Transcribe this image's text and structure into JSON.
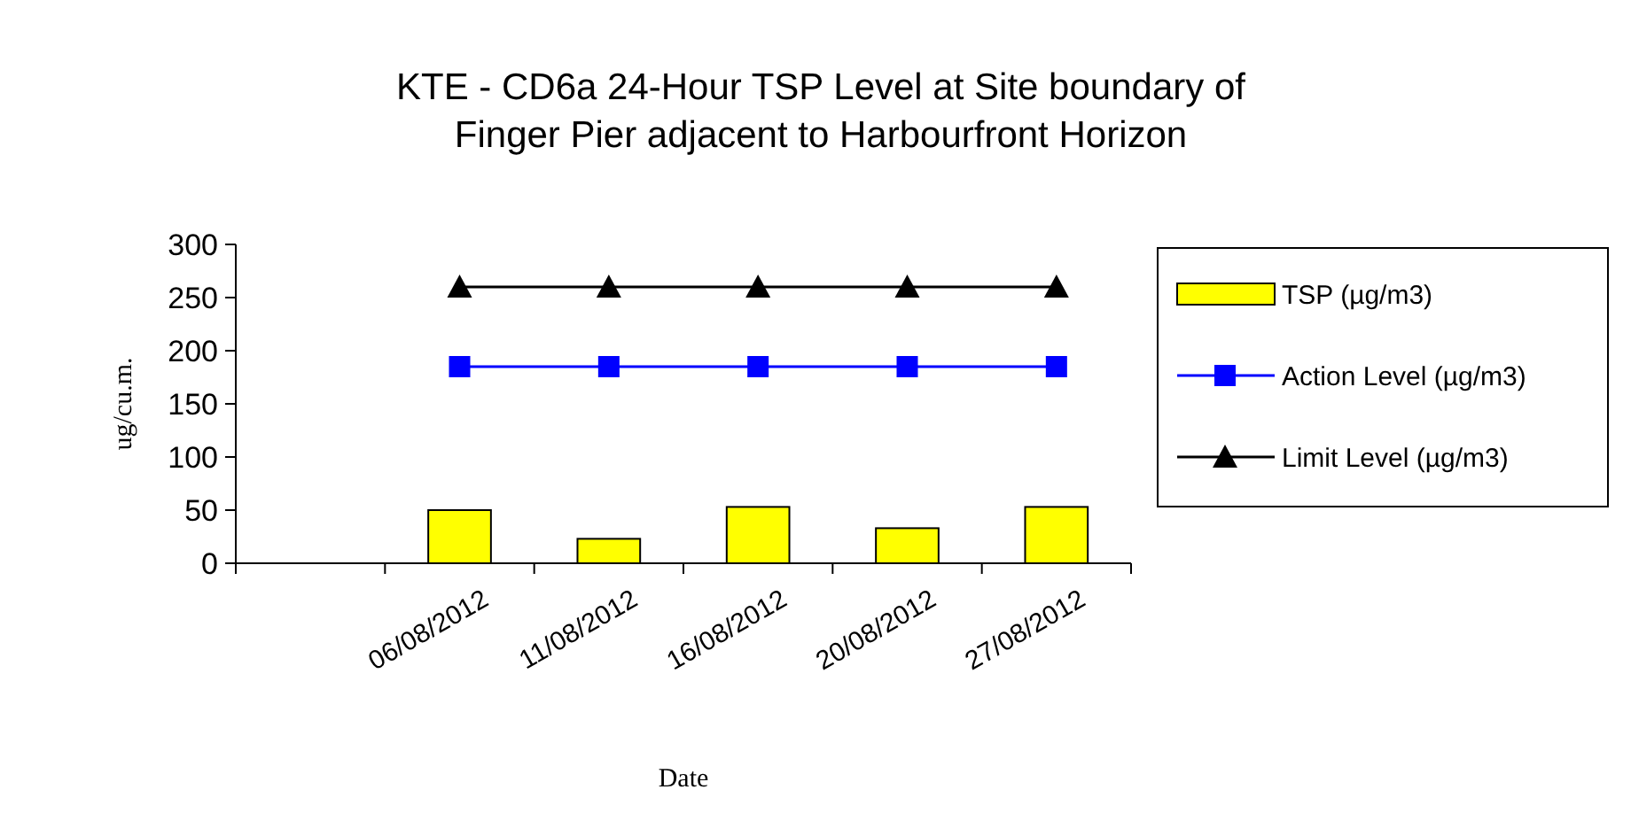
{
  "chart_data": {
    "type": "bar",
    "title": "KTE - CD6a 24-Hour TSP Level at Site boundary of\nFinger Pier adjacent to Harbourfront Horizon",
    "xlabel": "Date",
    "ylabel": "ug/cu.m.",
    "categories": [
      null,
      "06/08/2012",
      "11/08/2012",
      "16/08/2012",
      "20/08/2012",
      "27/08/2012"
    ],
    "series": [
      {
        "name": "TSP (µg/m3)",
        "color": "#ffff00",
        "values": [
          null,
          50,
          23,
          53,
          33,
          53
        ]
      },
      {
        "name": "Action Level (µg/m3)",
        "type": "line",
        "color": "#0000ff",
        "marker": "square",
        "values": [
          null,
          185,
          185,
          185,
          185,
          185
        ]
      },
      {
        "name": "Limit Level (µg/m3)",
        "type": "line",
        "color": "#000000",
        "marker": "triangle",
        "values": [
          null,
          260,
          260,
          260,
          260,
          260
        ]
      }
    ],
    "ylim": [
      0,
      300
    ],
    "yticks": [
      0,
      50,
      100,
      150,
      200,
      250,
      300
    ],
    "grid": false,
    "legend": "right"
  }
}
